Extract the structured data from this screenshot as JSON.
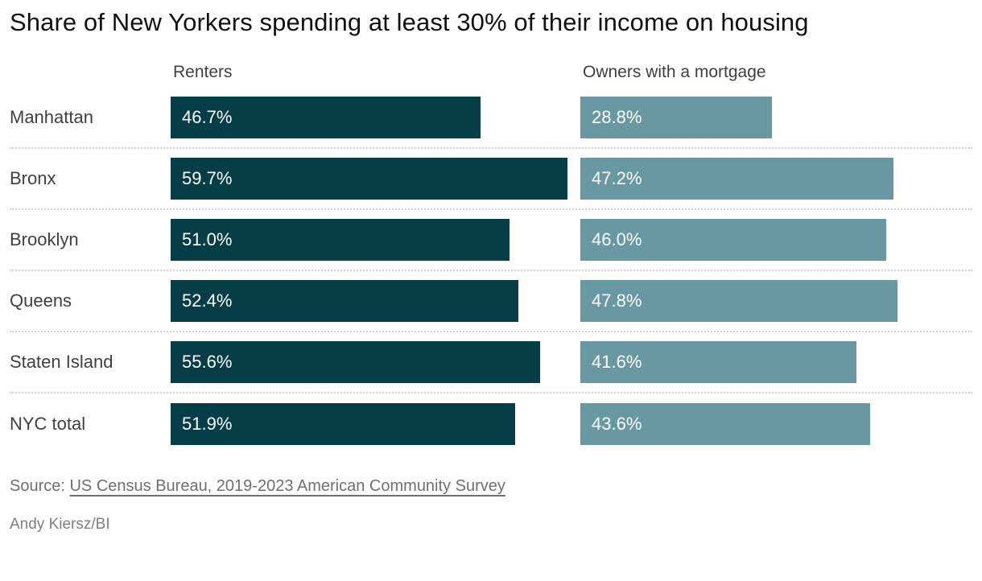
{
  "title": "Share of New Yorkers spending at least 30% of their income on housing",
  "source": {
    "prefix": "Source: ",
    "link_text": "US Census Bureau, 2019-2023 American Community Survey"
  },
  "byline": "Andy Kiersz/BI",
  "colors": {
    "renters_bar": "#053e47",
    "owners_bar": "#6899a3",
    "bar_value_text": "#ffffff",
    "label_text": "#3f3f3f",
    "title_text": "#111111",
    "row_separator": "#d2d2d2"
  },
  "chart_data": {
    "type": "bar",
    "orientation": "horizontal",
    "title": "Share of New Yorkers spending at least 30% of their income on housing",
    "categories": [
      "Manhattan",
      "Bronx",
      "Brooklyn",
      "Queens",
      "Staten Island",
      "NYC total"
    ],
    "series": [
      {
        "name": "Renters",
        "values": [
          46.7,
          59.7,
          51.0,
          52.4,
          55.6,
          51.9
        ],
        "color": "#053e47"
      },
      {
        "name": "Owners with a mortgage",
        "values": [
          28.8,
          47.2,
          46.0,
          47.8,
          41.6,
          43.6
        ],
        "color": "#6899a3"
      }
    ],
    "value_suffix": "%",
    "value_format": "one-decimal",
    "xlim": [
      0,
      60
    ],
    "legend_position": "column-headers",
    "grid": "dotted-row-separators",
    "data_labels": "inside-bar-start"
  }
}
